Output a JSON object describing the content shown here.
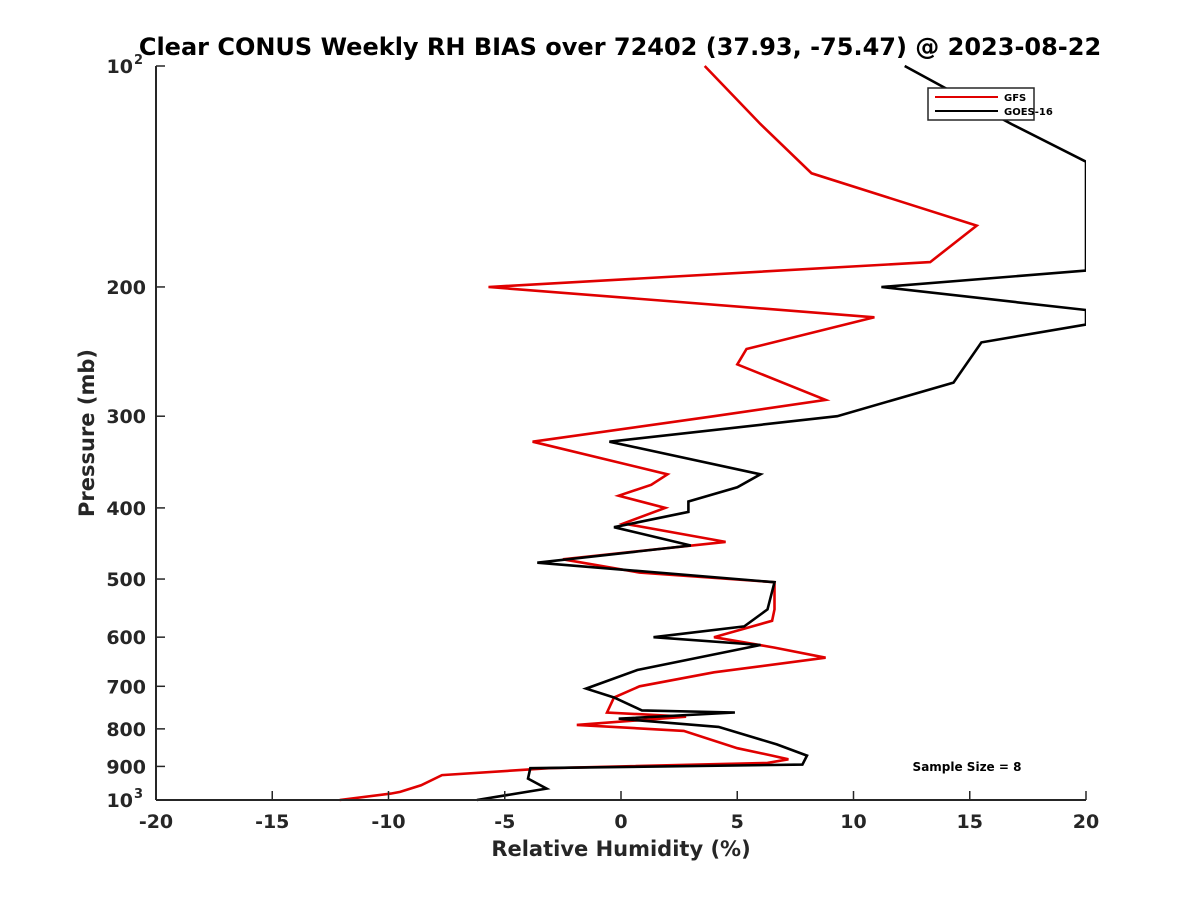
{
  "chart_data": {
    "type": "line",
    "title": "Clear CONUS Weekly RH BIAS over 72402 (37.93, -75.47) @ 2023-08-22",
    "xlabel": "Relative Humidity (%)",
    "ylabel": "Pressure (mb)",
    "xlim": [
      -20,
      20
    ],
    "ylim": [
      100,
      1000
    ],
    "yscale": "log",
    "yreverse": true,
    "xticks": [
      -20,
      -15,
      -10,
      -5,
      0,
      5,
      10,
      15,
      20
    ],
    "xtick_labels": [
      "-20",
      "-15",
      "-10",
      "-5",
      "0",
      "5",
      "10",
      "15",
      "20"
    ],
    "yticks": [
      {
        "value": 100,
        "base": "10",
        "exp": "2"
      },
      {
        "value": 200,
        "label": "200"
      },
      {
        "value": 300,
        "label": "300"
      },
      {
        "value": 400,
        "label": "400"
      },
      {
        "value": 500,
        "label": "500"
      },
      {
        "value": 600,
        "label": "600"
      },
      {
        "value": 700,
        "label": "700"
      },
      {
        "value": 800,
        "label": "800"
      },
      {
        "value": 900,
        "label": "900"
      },
      {
        "value": 1000,
        "base": "10",
        "exp": "3"
      }
    ],
    "legend_position": "top-right",
    "annotation": "Sample Size = 8",
    "series": [
      {
        "name": "GFS",
        "color": "#e00000",
        "points": [
          [
            3.6,
            100
          ],
          [
            6,
            120
          ],
          [
            8.2,
            140
          ],
          [
            15.3,
            165
          ],
          [
            13.3,
            185
          ],
          [
            -5.7,
            200
          ],
          [
            10.9,
            220
          ],
          [
            5.4,
            243
          ],
          [
            5,
            255
          ],
          [
            8.8,
            285
          ],
          [
            4,
            300
          ],
          [
            -3.8,
            325
          ],
          [
            2,
            360
          ],
          [
            1.3,
            372
          ],
          [
            -0.1,
            385
          ],
          [
            1.9,
            400
          ],
          [
            0.1,
            420
          ],
          [
            4.5,
            445
          ],
          [
            -2.5,
            470
          ],
          [
            0.8,
            490
          ],
          [
            6.6,
            505
          ],
          [
            6.6,
            550
          ],
          [
            6.5,
            570
          ],
          [
            4,
            600
          ],
          [
            6.6,
            620
          ],
          [
            8.8,
            640
          ],
          [
            4,
            670
          ],
          [
            0.8,
            700
          ],
          [
            -0.3,
            725
          ],
          [
            -0.6,
            760
          ],
          [
            2.8,
            770
          ],
          [
            -1.9,
            790
          ],
          [
            2.7,
            805
          ],
          [
            5,
            850
          ],
          [
            6.5,
            870
          ],
          [
            7.2,
            880
          ],
          [
            6.3,
            890
          ],
          [
            -3.1,
            905
          ],
          [
            -7.7,
            925
          ],
          [
            -8.6,
            955
          ],
          [
            -9.5,
            975
          ],
          [
            -9.9,
            980
          ],
          [
            -12.1,
            1000
          ]
        ]
      },
      {
        "name": "GOES-16",
        "color": "#000000",
        "points": [
          [
            12.2,
            100
          ],
          [
            16.8,
            120
          ],
          [
            20,
            135
          ],
          [
            20,
            190
          ],
          [
            11.2,
            200
          ],
          [
            20,
            215
          ],
          [
            20,
            225
          ],
          [
            15.5,
            238
          ],
          [
            14.3,
            270
          ],
          [
            9.3,
            300
          ],
          [
            -0.5,
            325
          ],
          [
            6,
            360
          ],
          [
            5,
            375
          ],
          [
            2.9,
            392
          ],
          [
            2.9,
            405
          ],
          [
            -0.3,
            425
          ],
          [
            3,
            450
          ],
          [
            -3.6,
            475
          ],
          [
            6.6,
            505
          ],
          [
            6.3,
            550
          ],
          [
            5.3,
            580
          ],
          [
            1.4,
            600
          ],
          [
            6,
            615
          ],
          [
            0.7,
            665
          ],
          [
            -1.5,
            705
          ],
          [
            -0.3,
            725
          ],
          [
            0.9,
            755
          ],
          [
            4.9,
            760
          ],
          [
            -0.1,
            775
          ],
          [
            4.2,
            795
          ],
          [
            6.7,
            840
          ],
          [
            8,
            870
          ],
          [
            7.8,
            895
          ],
          [
            -3.9,
            905
          ],
          [
            -4,
            935
          ],
          [
            -3.2,
            965
          ],
          [
            -6.2,
            1000
          ]
        ]
      }
    ]
  }
}
